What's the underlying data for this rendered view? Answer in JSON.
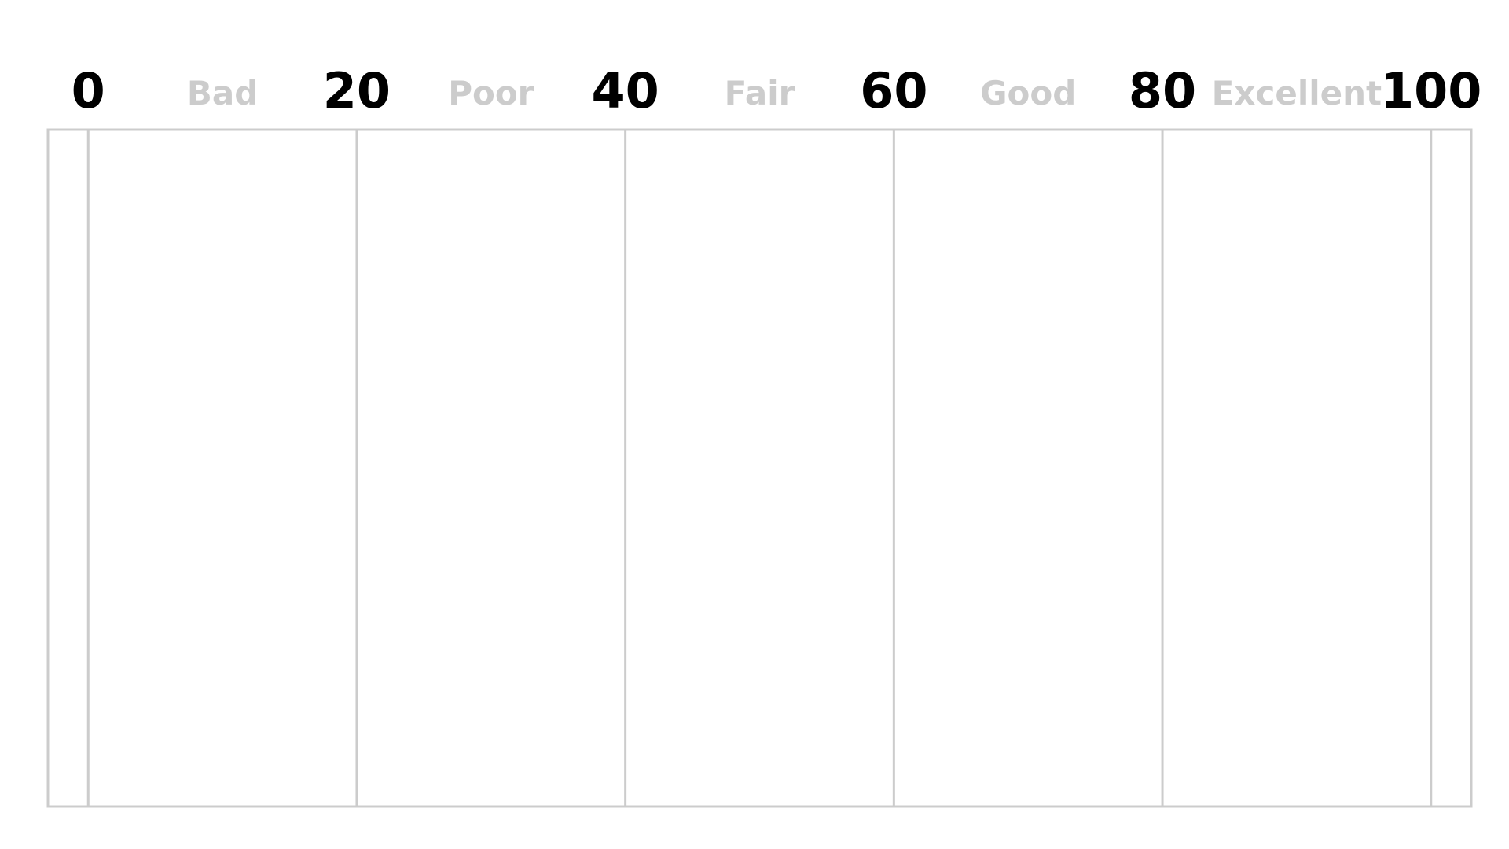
{
  "chart_data": {
    "type": "table",
    "x": [
      0,
      20,
      40,
      60,
      80,
      100
    ],
    "xlim": [
      -3,
      103
    ],
    "tick_labels": [
      "0",
      "20",
      "40",
      "60",
      "80",
      "100"
    ],
    "bands": [
      {
        "label": "Bad",
        "from": 0,
        "to": 20
      },
      {
        "label": "Poor",
        "from": 20,
        "to": 40
      },
      {
        "label": "Fair",
        "from": 40,
        "to": 60
      },
      {
        "label": "Good",
        "from": 60,
        "to": 80
      },
      {
        "label": "Excellent",
        "from": 80,
        "to": 100
      }
    ],
    "grid": true,
    "colors": {
      "tick_text": "#000000",
      "band_text": "#cccccc",
      "grid_line": "#cccccc",
      "frame": "#cccccc"
    }
  }
}
